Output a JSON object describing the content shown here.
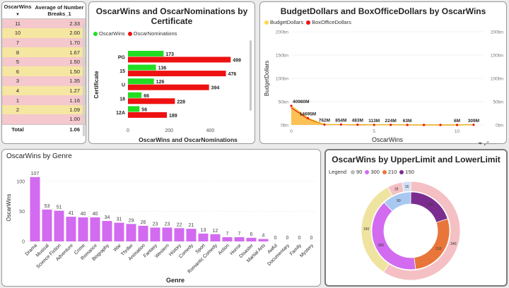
{
  "table": {
    "headers": [
      "OscarWins",
      "Average of Number Breaks_1"
    ],
    "rows": [
      {
        "wins": "11",
        "avg": "2.33",
        "tone": "pink"
      },
      {
        "wins": "10",
        "avg": "2.00",
        "tone": "yel"
      },
      {
        "wins": "7",
        "avg": "1.70",
        "tone": "pink"
      },
      {
        "wins": "8",
        "avg": "1.67",
        "tone": "yel"
      },
      {
        "wins": "5",
        "avg": "1.50",
        "tone": "pink"
      },
      {
        "wins": "6",
        "avg": "1.50",
        "tone": "yel"
      },
      {
        "wins": "3",
        "avg": "1.35",
        "tone": "pink"
      },
      {
        "wins": "4",
        "avg": "1.27",
        "tone": "yel"
      },
      {
        "wins": "1",
        "avg": "1.16",
        "tone": "pink"
      },
      {
        "wins": "2",
        "avg": "1.09",
        "tone": "yel"
      },
      {
        "wins": "",
        "avg": "1.00",
        "tone": "pink"
      }
    ],
    "total_label": "Total",
    "total_value": "1.06"
  },
  "chart_data": [
    {
      "type": "bar",
      "orientation": "horizontal",
      "title": "OscarWins and OscarNominations by Certificate",
      "xlabel": "OscarWins and OscarNominations",
      "ylabel": "Certificate",
      "categories": [
        "PG",
        "15",
        "U",
        "18",
        "12A"
      ],
      "series": [
        {
          "name": "OscarWins",
          "color": "#22dd22",
          "values": [
            173,
            136,
            126,
            66,
            56
          ]
        },
        {
          "name": "OscarNominations",
          "color": "#ee1111",
          "values": [
            499,
            476,
            394,
            228,
            189
          ]
        }
      ],
      "xticks": [
        "0",
        "200",
        "400"
      ],
      "xlim": [
        0,
        560
      ]
    },
    {
      "type": "area",
      "title": "BudgetDollars and BoxOfficeDollars by OscarWins",
      "xlabel": "OscarWins",
      "ylabel": "BudgetDollars",
      "series": [
        {
          "name": "BudgetDollars",
          "color": "#ffd84a"
        },
        {
          "name": "BoxOfficeDollars",
          "color": "#ee1111"
        }
      ],
      "x": [
        0,
        1,
        2,
        3,
        4,
        5,
        6,
        7,
        8,
        9,
        10,
        11
      ],
      "budget_values": [
        40980,
        14695,
        762,
        854,
        483,
        113,
        224,
        63,
        30,
        15,
        6,
        309
      ],
      "data_labels": [
        "40980M",
        "14695M",
        "762M",
        "854M",
        "483M",
        "113M",
        "224M",
        "63M",
        "",
        "",
        "6M",
        "309M"
      ],
      "yticks_left": [
        "0bn",
        "50bn",
        "100bn",
        "150bn",
        "200bn"
      ],
      "yticks_right": [
        "0bn",
        "50bn",
        "100bn",
        "150bn",
        "200bn"
      ],
      "xticks": [
        "0",
        "5",
        "10"
      ],
      "ylim": [
        0,
        200000
      ]
    },
    {
      "type": "bar",
      "title": "OscarWins by Genre",
      "xlabel": "Genre",
      "ylabel": "OscarWins",
      "color": "#d26bf0",
      "categories": [
        "Drama",
        "Musical",
        "Science Fiction",
        "Adventure",
        "Crime",
        "Romance",
        "Biography",
        "War",
        "Thriller",
        "Animation",
        "Fantasy",
        "Western",
        "History",
        "Comedy",
        "Sport",
        "Romantic Comedy",
        "Action",
        "Horror",
        "Disaster",
        "Martial Arts",
        "Awful",
        "Documentary",
        "Family",
        "Mystery"
      ],
      "values": [
        107,
        53,
        51,
        41,
        40,
        40,
        34,
        31,
        29,
        26,
        23,
        23,
        22,
        21,
        13,
        12,
        7,
        7,
        6,
        4,
        0,
        0,
        0,
        0
      ],
      "yticks": [
        "0",
        "50",
        "100"
      ],
      "ylim": [
        0,
        115
      ]
    },
    {
      "type": "pie",
      "variant": "nested-donut",
      "title": "OscarWins by UpperLimit and LowerLimit",
      "legend_title": "Legend",
      "legend": [
        {
          "name": "90",
          "color": "#bdbdbd"
        },
        {
          "name": "300",
          "color": "#d26bf0"
        },
        {
          "name": "210",
          "color": "#e8763a"
        },
        {
          "name": "150",
          "color": "#7b2d8f"
        }
      ],
      "inner_ring": [
        {
          "value": 150,
          "label": "150",
          "color": "#7b2d8f"
        },
        {
          "value": 210,
          "label": "210",
          "color": "#e8763a"
        },
        {
          "value": 300,
          "label": "300",
          "color": "#d26bf0"
        },
        {
          "value": 90,
          "label": "90",
          "color": "#a8c8f0"
        }
      ],
      "outer_ring": [
        {
          "value": 340,
          "label": "340",
          "color": "#f4c0c4"
        },
        {
          "value": 190,
          "label": "190",
          "color": "#efe3a0"
        },
        {
          "value": 28,
          "label": "28",
          "color": "#f4c0c4"
        },
        {
          "value": 16,
          "label": "16",
          "color": "#cfe0f5"
        }
      ]
    }
  ]
}
